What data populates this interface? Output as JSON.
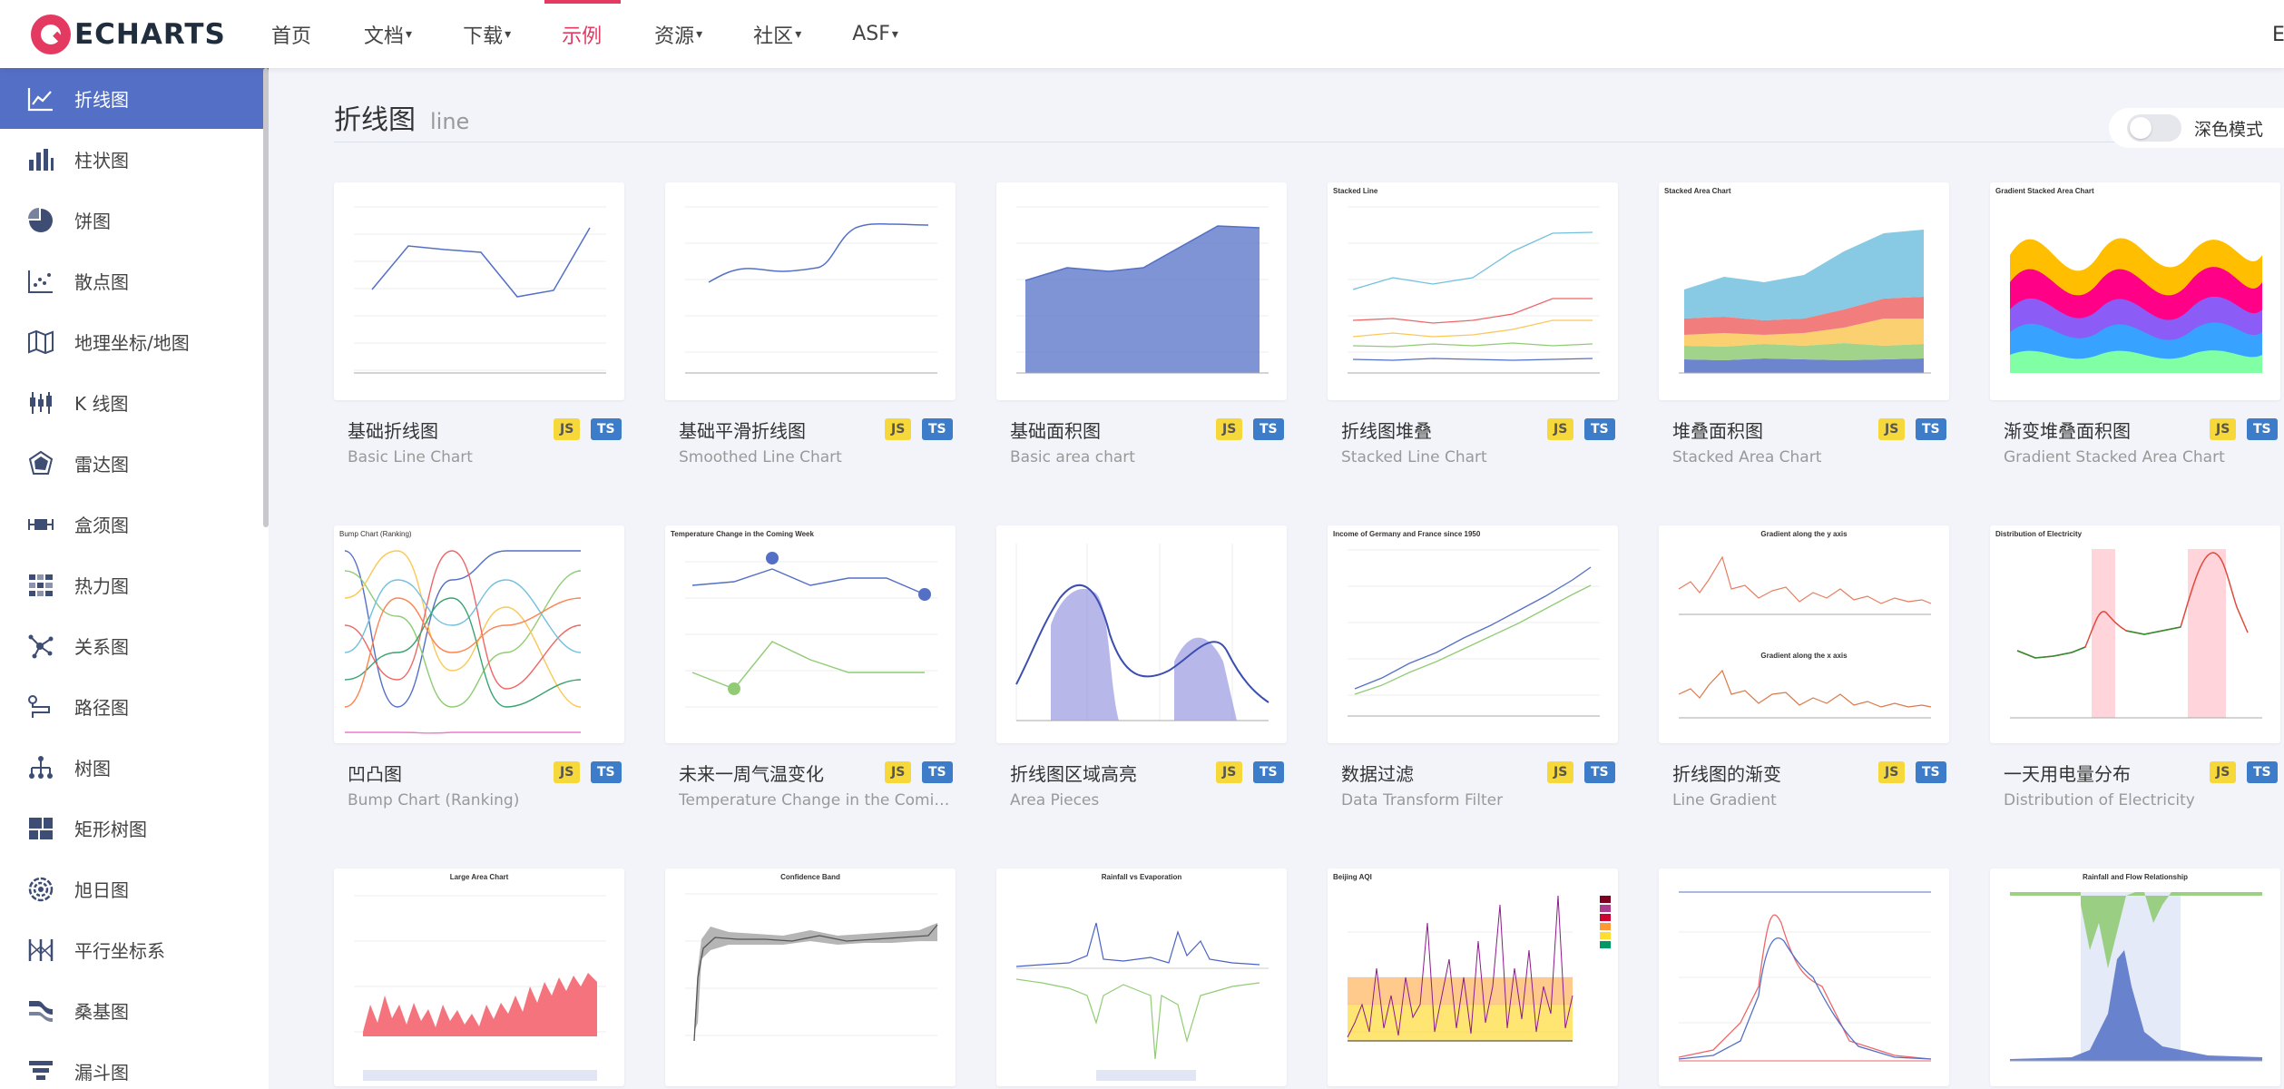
{
  "brand": {
    "logo_text": "ECHARTS"
  },
  "nav": {
    "items": [
      {
        "label": "首页",
        "caret": ""
      },
      {
        "label": "文档",
        "caret": "▾"
      },
      {
        "label": "下载",
        "caret": "▾"
      },
      {
        "label": "示例",
        "caret": ""
      },
      {
        "label": "资源",
        "caret": "▾"
      },
      {
        "label": "社区",
        "caret": "▾"
      },
      {
        "label": "ASF",
        "caret": "▾"
      }
    ],
    "active_index": 3,
    "edge_text": "E"
  },
  "sidebar": {
    "items": [
      {
        "label": "折线图",
        "icon": "line-chart-icon"
      },
      {
        "label": "柱状图",
        "icon": "bar-chart-icon"
      },
      {
        "label": "饼图",
        "icon": "pie-chart-icon"
      },
      {
        "label": "散点图",
        "icon": "scatter-chart-icon"
      },
      {
        "label": "地理坐标/地图",
        "icon": "map-icon"
      },
      {
        "label": "K 线图",
        "icon": "candlestick-icon"
      },
      {
        "label": "雷达图",
        "icon": "radar-icon"
      },
      {
        "label": "盒须图",
        "icon": "boxplot-icon"
      },
      {
        "label": "热力图",
        "icon": "heatmap-icon"
      },
      {
        "label": "关系图",
        "icon": "graph-icon"
      },
      {
        "label": "路径图",
        "icon": "lines-icon"
      },
      {
        "label": "树图",
        "icon": "tree-icon"
      },
      {
        "label": "矩形树图",
        "icon": "treemap-icon"
      },
      {
        "label": "旭日图",
        "icon": "sunburst-icon"
      },
      {
        "label": "平行坐标系",
        "icon": "parallel-icon"
      },
      {
        "label": "桑基图",
        "icon": "sankey-icon"
      },
      {
        "label": "漏斗图",
        "icon": "funnel-icon"
      }
    ],
    "active_index": 0
  },
  "page": {
    "title_zh": "折线图",
    "title_en": "line",
    "dark_mode_label": "深色模式"
  },
  "badges": {
    "js": "JS",
    "ts": "TS"
  },
  "cards": [
    {
      "title": "基础折线图",
      "subtitle": "Basic Line Chart",
      "thumb": "basic-line"
    },
    {
      "title": "基础平滑折线图",
      "subtitle": "Smoothed Line Chart",
      "thumb": "smooth-line"
    },
    {
      "title": "基础面积图",
      "subtitle": "Basic area chart",
      "thumb": "basic-area"
    },
    {
      "title": "折线图堆叠",
      "subtitle": "Stacked Line Chart",
      "thumb": "stacked-line",
      "chart_title": "Stacked Line"
    },
    {
      "title": "堆叠面积图",
      "subtitle": "Stacked Area Chart",
      "thumb": "stacked-area",
      "chart_title": "Stacked Area Chart"
    },
    {
      "title": "渐变堆叠面积图",
      "subtitle": "Gradient Stacked Area Chart",
      "thumb": "gradient-stacked",
      "chart_title": "Gradient Stacked Area Chart"
    },
    {
      "title": "凹凸图",
      "subtitle": "Bump Chart (Ranking)",
      "thumb": "bump",
      "chart_title": "Bump Chart (Ranking)"
    },
    {
      "title": "未来一周气温变化",
      "subtitle": "Temperature Change in the Coming Week",
      "thumb": "temperature",
      "chart_title": "Temperature Change in the Coming Week"
    },
    {
      "title": "折线图区域高亮",
      "subtitle": "Area Pieces",
      "thumb": "area-pieces"
    },
    {
      "title": "数据过滤",
      "subtitle": "Data Transform Filter",
      "thumb": "transform-filter",
      "chart_title": "Income of Germany and France since 1950"
    },
    {
      "title": "折线图的渐变",
      "subtitle": "Line Gradient",
      "thumb": "line-gradient",
      "chart_title": "Gradient along the y axis",
      "chart_title_2": "Gradient along the x axis"
    },
    {
      "title": "一天用电量分布",
      "subtitle": "Distribution of Electricity",
      "thumb": "electricity",
      "chart_title": "Distribution of Electricity"
    },
    {
      "title": "",
      "subtitle": "",
      "thumb": "large-area",
      "chart_title": "Large Area Chart"
    },
    {
      "title": "",
      "subtitle": "",
      "thumb": "confidence",
      "chart_title": "Confidence Band"
    },
    {
      "title": "",
      "subtitle": "",
      "thumb": "rainfall",
      "chart_title": "Rainfall vs Evaporation"
    },
    {
      "title": "",
      "subtitle": "",
      "thumb": "aqi",
      "chart_title": "Beijing AQI"
    },
    {
      "title": "",
      "subtitle": "",
      "thumb": "precipitation"
    },
    {
      "title": "",
      "subtitle": "",
      "thumb": "rainfall-flow",
      "chart_title": "Rainfall and Flow Relationship"
    }
  ]
}
